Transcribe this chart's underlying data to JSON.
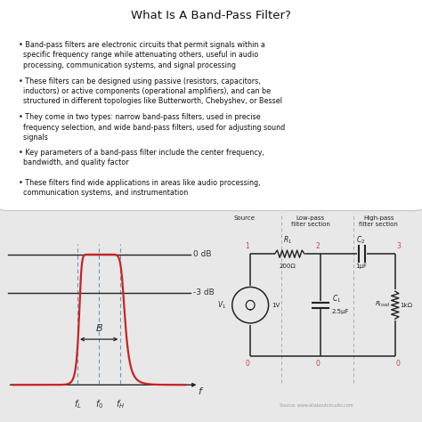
{
  "title": "What Is A Band-Pass Filter?",
  "title_fontsize": 9.5,
  "bg_color": "#e8e8e8",
  "box_bg": "#ffffff",
  "bullet_points": [
    "Band-pass filters are electronic circuits that permit signals within a\n  specific frequency range while attenuating others, useful in audio\n  processing, communication systems, and signal processing",
    "These filters can be designed using passive (resistors, capacitors,\n  inductors) or active components (operational amplifiers), and can be\n  structured in different topologies like Butterworth, Chebyshev, or Bessel",
    "They come in two types: narrow band-pass filters, used in precise\n  frequency selection, and wide band-pass filters, used for adjusting sound\n  signals",
    "Key parameters of a band-pass filter include the center frequency,\n  bandwidth, and quality factor",
    "These filters find wide applications in areas like audio processing,\n  communication systems, and instrumentation"
  ],
  "bullet_fontsize": 5.8,
  "curve_color": "#cc2222",
  "line_color": "#222222",
  "dashed_color": "#6699bb",
  "annotation_color": "#333333",
  "zero_db_label": "0 dB",
  "minus3_db_label": "-3 dB",
  "bandwidth_label": "B",
  "freq_label": "f",
  "source_label": "Source: www.allaboutcircuits.com",
  "node_color": "#cc4444",
  "component_color": "#222222"
}
